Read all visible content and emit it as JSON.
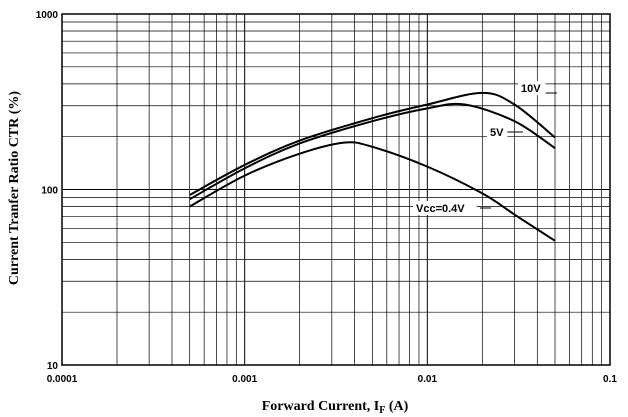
{
  "chart_data": {
    "type": "line",
    "x_scale": "log",
    "y_scale": "log",
    "xlim": [
      0.0001,
      0.1
    ],
    "ylim": [
      10,
      1000
    ],
    "grid": true,
    "xlabel_main": "Forward Current, I",
    "xlabel_sub": "F",
    "xlabel_unit": " (A)",
    "ylabel": "Current Tranfer Ratio CTR (%)",
    "x_ticks": [
      {
        "value": 0.0001,
        "label": "0.0001"
      },
      {
        "value": 0.001,
        "label": "0.001"
      },
      {
        "value": 0.01,
        "label": "0.01"
      },
      {
        "value": 0.1,
        "label": "0.1"
      }
    ],
    "y_ticks": [
      {
        "value": 10,
        "label": "10"
      },
      {
        "value": 100,
        "label": "100"
      },
      {
        "value": 1000,
        "label": "1000"
      }
    ],
    "series": [
      {
        "name": "10V",
        "x": [
          0.0005,
          0.001,
          0.002,
          0.005,
          0.01,
          0.02,
          0.03,
          0.05
        ],
        "y": [
          93,
          138,
          190,
          255,
          305,
          355,
          305,
          198
        ]
      },
      {
        "name": "5V",
        "x": [
          0.0005,
          0.001,
          0.002,
          0.005,
          0.01,
          0.016,
          0.03,
          0.05
        ],
        "y": [
          88,
          132,
          183,
          245,
          290,
          305,
          245,
          172
        ]
      },
      {
        "name": "Vcc=0.4V",
        "x": [
          0.0005,
          0.001,
          0.002,
          0.0035,
          0.005,
          0.01,
          0.02,
          0.03,
          0.05
        ],
        "y": [
          80,
          120,
          160,
          185,
          175,
          135,
          95,
          72,
          51
        ]
      }
    ]
  }
}
